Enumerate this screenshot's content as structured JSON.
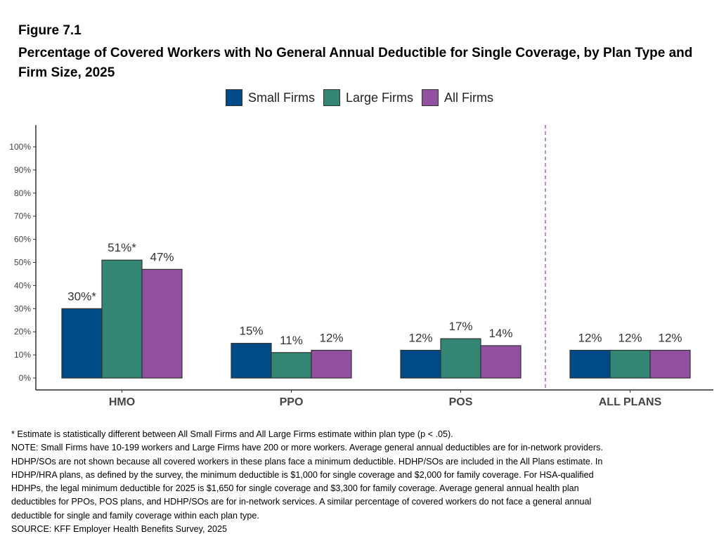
{
  "figure_label": "Figure 7.1",
  "chart_data": {
    "type": "bar",
    "title": "Percentage of Covered Workers with No General Annual Deductible for Single Coverage, by Plan Type and Firm Size, 2025",
    "categories": [
      "HMO",
      "PPO",
      "POS",
      "ALL PLANS"
    ],
    "series": [
      {
        "name": "Small Firms",
        "color": "#004b87",
        "values": [
          30,
          15,
          12,
          12
        ],
        "labels": [
          "30%*",
          "15%",
          "12%",
          "12%"
        ]
      },
      {
        "name": "Large Firms",
        "color": "#338673",
        "values": [
          51,
          11,
          17,
          12
        ],
        "labels": [
          "51%*",
          "11%",
          "17%",
          "12%"
        ]
      },
      {
        "name": "All Firms",
        "color": "#9251a0",
        "values": [
          47,
          12,
          14,
          12
        ],
        "labels": [
          "47%",
          "12%",
          "14%",
          "12%"
        ]
      }
    ],
    "yticks": [
      "0%",
      "10%",
      "20%",
      "30%",
      "40%",
      "50%",
      "60%",
      "70%",
      "80%",
      "90%",
      "100%"
    ],
    "ylim": [
      0,
      100
    ],
    "xlabel": "",
    "ylabel": "",
    "grid": false,
    "legend": "top",
    "separator": "dashed line before ALL PLANS",
    "separator_color": "#9251a0"
  },
  "notes": [
    "* Estimate is statistically different between All Small Firms and All Large Firms estimate within plan type (p < .05).",
    "NOTE: Small Firms have 10-199 workers and Large Firms have 200 or more workers. Average general annual deductibles are for in-network providers.",
    "HDHP/SOs are not shown because all covered workers in these plans face a minimum deductible. HDHP/SOs are included in the All Plans estimate. In",
    "HDHP/HRA plans, as defined by the survey, the minimum deductible is $1,000 for single coverage and $2,000 for family coverage. For HSA-qualified",
    "HDHPs, the legal minimum deductible for 2025 is $1,650 for single coverage and $3,300 for family coverage. Average general annual health plan",
    "deductibles for PPOs, POS plans, and HDHP/SOs are for in-network services. A similar percentage of covered workers do not face a general annual",
    "deductible for single and family coverage within each plan type.",
    "SOURCE: KFF Employer Health Benefits Survey, 2025"
  ]
}
